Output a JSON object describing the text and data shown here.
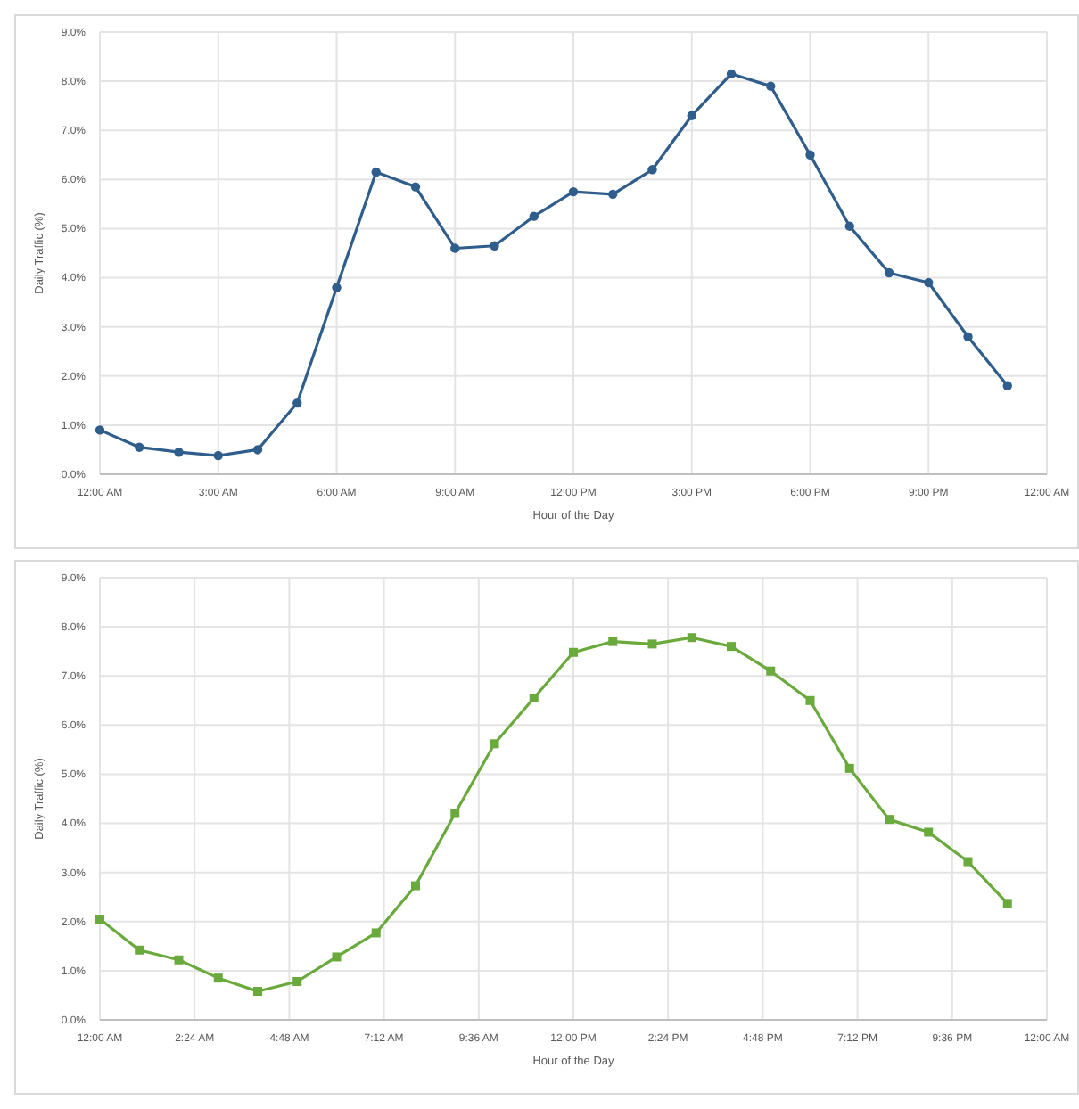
{
  "chart_data": [
    {
      "type": "line",
      "xlabel": "Hour of the Day",
      "ylabel": "Daily Traffic (%)",
      "x": [
        0,
        1,
        2,
        3,
        4,
        5,
        6,
        7,
        8,
        9,
        10,
        11,
        12,
        13,
        14,
        15,
        16,
        17,
        18,
        19,
        20,
        21,
        22,
        23
      ],
      "series": [
        {
          "color": "#2f5d8c",
          "values": [
            0.9,
            0.55,
            0.45,
            0.38,
            0.5,
            1.45,
            3.8,
            6.15,
            5.85,
            4.6,
            4.65,
            5.25,
            5.75,
            5.7,
            6.2,
            7.3,
            8.15,
            7.9,
            6.5,
            5.05,
            4.1,
            3.9,
            2.8,
            1.8
          ]
        }
      ],
      "xlim": [
        0,
        24
      ],
      "xticks": [
        {
          "value": 0,
          "label": "12:00 AM"
        },
        {
          "value": 3,
          "label": "3:00 AM"
        },
        {
          "value": 6,
          "label": "6:00 AM"
        },
        {
          "value": 9,
          "label": "9:00 AM"
        },
        {
          "value": 12,
          "label": "12:00 PM"
        },
        {
          "value": 15,
          "label": "3:00 PM"
        },
        {
          "value": 18,
          "label": "6:00 PM"
        },
        {
          "value": 21,
          "label": "9:00 PM"
        },
        {
          "value": 24,
          "label": "12:00 AM"
        }
      ],
      "ylim": [
        0,
        9
      ],
      "yticks": [
        {
          "value": 0,
          "label": "0.0%"
        },
        {
          "value": 1,
          "label": "1.0%"
        },
        {
          "value": 2,
          "label": "2.0%"
        },
        {
          "value": 3,
          "label": "3.0%"
        },
        {
          "value": 4,
          "label": "4.0%"
        },
        {
          "value": 5,
          "label": "5.0%"
        },
        {
          "value": 6,
          "label": "6.0%"
        },
        {
          "value": 7,
          "label": "7.0%"
        },
        {
          "value": 8,
          "label": "8.0%"
        },
        {
          "value": 9,
          "label": "9.0%"
        }
      ],
      "grid": true,
      "marker": "circle"
    },
    {
      "type": "line",
      "xlabel": "Hour of the Day",
      "ylabel": "Daily Traffic (%)",
      "x": [
        0,
        1,
        2,
        3,
        4,
        5,
        6,
        7,
        8,
        9,
        10,
        11,
        12,
        13,
        14,
        15,
        16,
        17,
        18,
        19,
        20,
        21,
        22,
        23
      ],
      "series": [
        {
          "color": "#6aaa3c",
          "values": [
            2.05,
            1.42,
            1.22,
            0.85,
            0.58,
            0.78,
            1.28,
            1.77,
            2.73,
            4.2,
            5.62,
            6.55,
            7.48,
            7.7,
            7.65,
            7.78,
            7.6,
            7.1,
            6.5,
            5.12,
            4.08,
            3.82,
            3.22,
            2.37
          ]
        }
      ],
      "xlim": [
        0,
        24
      ],
      "xticks": [
        {
          "value": 0,
          "label": "12:00 AM"
        },
        {
          "value": 2.4,
          "label": "2:24 AM"
        },
        {
          "value": 4.8,
          "label": "4:48 AM"
        },
        {
          "value": 7.2,
          "label": "7:12 AM"
        },
        {
          "value": 9.6,
          "label": "9:36 AM"
        },
        {
          "value": 12,
          "label": "12:00 PM"
        },
        {
          "value": 14.4,
          "label": "2:24 PM"
        },
        {
          "value": 16.8,
          "label": "4:48 PM"
        },
        {
          "value": 19.2,
          "label": "7:12 PM"
        },
        {
          "value": 21.6,
          "label": "9:36 PM"
        },
        {
          "value": 24,
          "label": "12:00 AM"
        }
      ],
      "ylim": [
        0,
        9
      ],
      "yticks": [
        {
          "value": 0,
          "label": "0.0%"
        },
        {
          "value": 1,
          "label": "1.0%"
        },
        {
          "value": 2,
          "label": "2.0%"
        },
        {
          "value": 3,
          "label": "3.0%"
        },
        {
          "value": 4,
          "label": "4.0%"
        },
        {
          "value": 5,
          "label": "5.0%"
        },
        {
          "value": 6,
          "label": "6.0%"
        },
        {
          "value": 7,
          "label": "7.0%"
        },
        {
          "value": 8,
          "label": "8.0%"
        },
        {
          "value": 9,
          "label": "9.0%"
        }
      ],
      "grid": true,
      "marker": "square"
    }
  ]
}
